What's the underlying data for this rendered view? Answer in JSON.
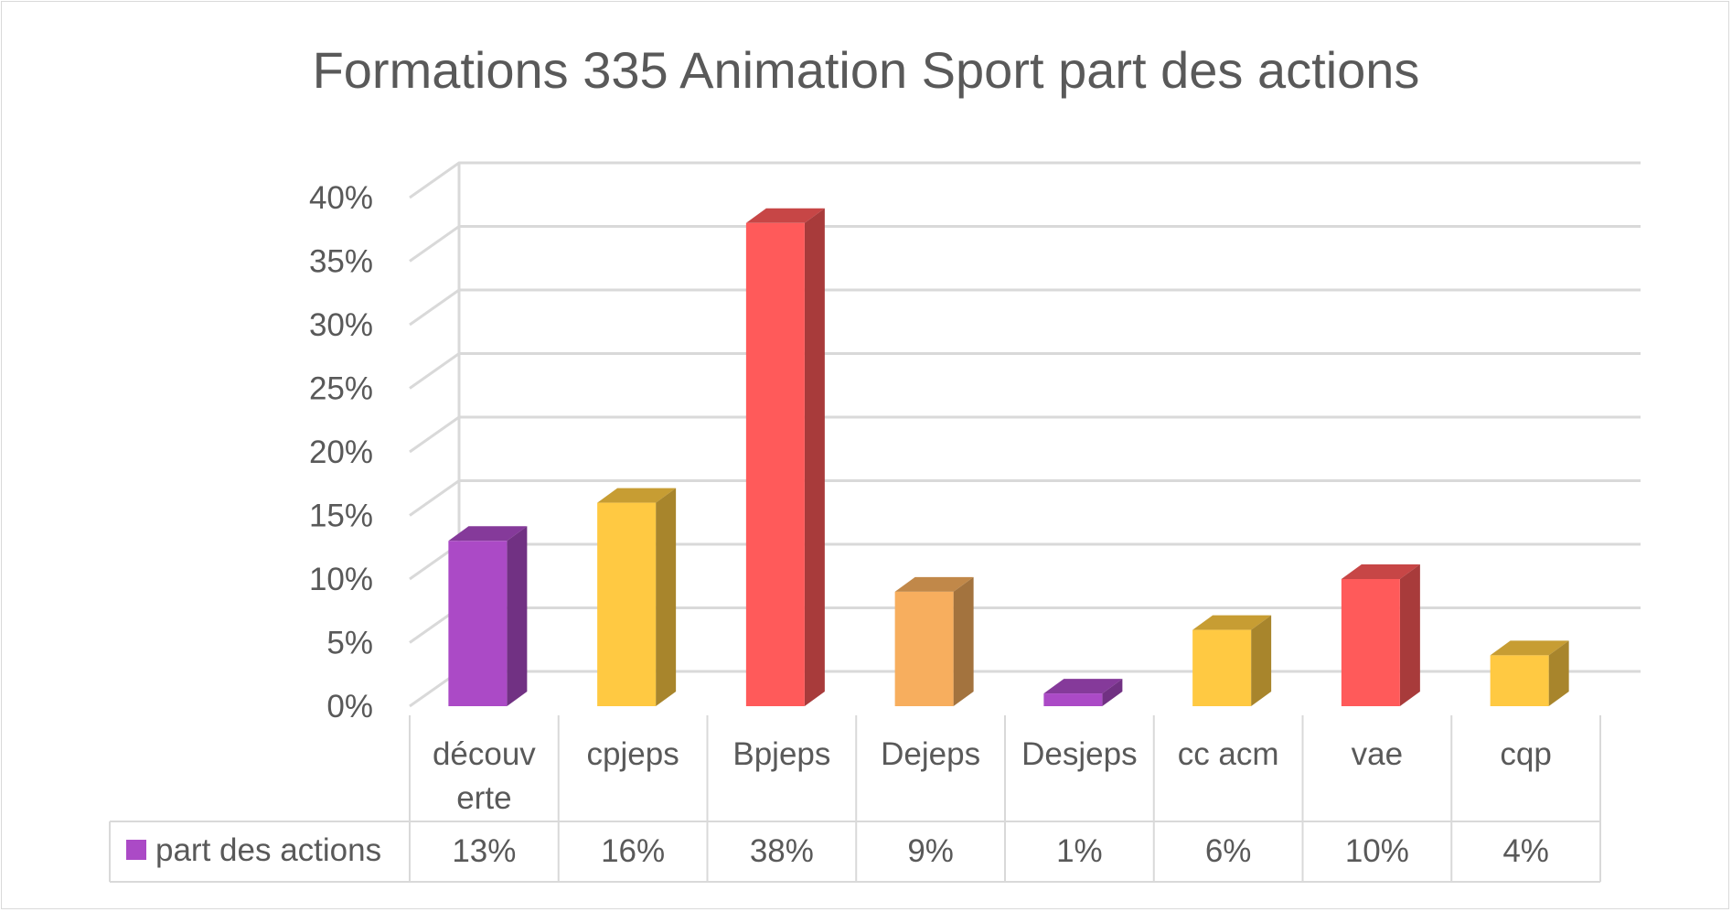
{
  "chart_data": {
    "type": "bar",
    "title": "Formations 335 Animation Sport part des actions",
    "categories": [
      "découverte",
      "cpjeps",
      "Bpjeps",
      "Dejeps",
      "Desjeps",
      "cc acm",
      "vae",
      "cqp"
    ],
    "category_lines": [
      [
        "découv",
        "erte"
      ],
      [
        "cpjeps"
      ],
      [
        "Bpjeps"
      ],
      [
        "Dejeps"
      ],
      [
        "Desjeps"
      ],
      [
        "cc acm"
      ],
      [
        "vae"
      ],
      [
        "cqp"
      ]
    ],
    "series": [
      {
        "name": "part des actions",
        "values": [
          13,
          16,
          38,
          9,
          1,
          6,
          10,
          4
        ],
        "labels": [
          "13%",
          "16%",
          "38%",
          "9%",
          "1%",
          "6%",
          "10%",
          "4%"
        ],
        "legend_color": "#ab4ac6"
      }
    ],
    "bar_colors": [
      "#ab4ac6",
      "#ffc942",
      "#ff5a5a",
      "#f7ae5e",
      "#ab4ac6",
      "#ffc942",
      "#ff5a5a",
      "#ffc942"
    ],
    "ylim": [
      0,
      40
    ],
    "yticks": [
      "0%",
      "5%",
      "10%",
      "15%",
      "20%",
      "25%",
      "30%",
      "35%",
      "40%"
    ],
    "xlabel": "",
    "ylabel": "",
    "grid": true,
    "data_table": true,
    "style_3d": true
  }
}
